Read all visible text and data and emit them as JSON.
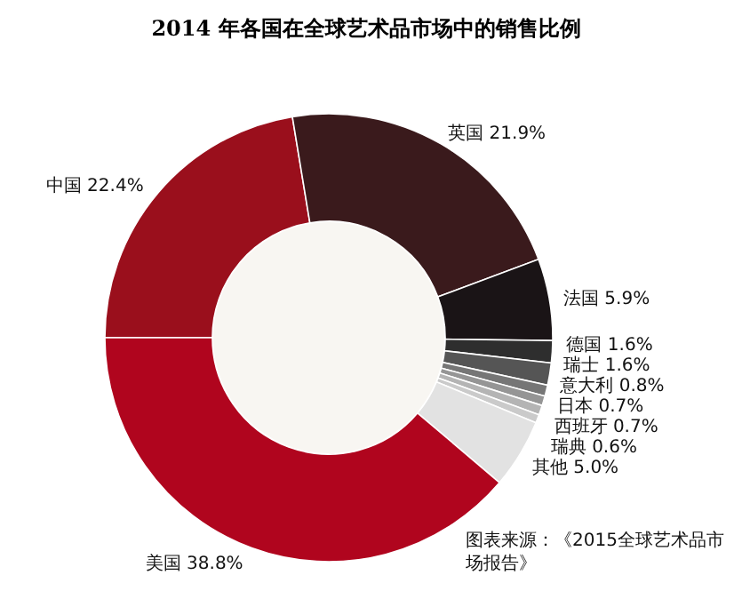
{
  "chart_data": {
    "type": "donut",
    "title": "2014 年各国在全球艺术品市场中的销售比例",
    "categories": [
      "中国",
      "英国",
      "法国",
      "德国",
      "瑞士",
      "意大利",
      "日本",
      "西班牙",
      "瑞典",
      "其他",
      "美国"
    ],
    "values": [
      22.4,
      21.9,
      5.9,
      1.6,
      1.6,
      0.8,
      0.7,
      0.7,
      0.6,
      5.0,
      38.8
    ],
    "value_labels": [
      "22.4%",
      "21.9%",
      "5.9%",
      "1.6%",
      "1.6%",
      "0.8%",
      "0.7%",
      "0.7%",
      "0.6%",
      "5.0%",
      "38.8%"
    ],
    "colors": [
      "#9a0f1c",
      "#3a1a1c",
      "#1a1416",
      "#2e2e2e",
      "#555555",
      "#767676",
      "#959595",
      "#b4b4b4",
      "#cacaca",
      "#e2e2e2",
      "#b0051e"
    ],
    "annotations": [
      "图表来源：《2015全球艺术品市场报告》"
    ]
  }
}
